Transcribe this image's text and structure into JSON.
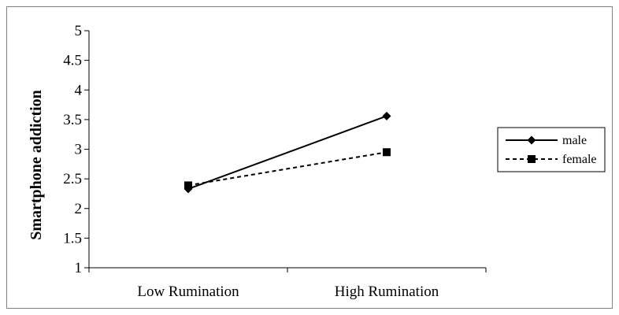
{
  "chart_data": {
    "type": "line",
    "categories": [
      "Low Rumination",
      "High Rumination"
    ],
    "ylabel": "Smartphone addiction",
    "xlabel": "",
    "ylim": [
      1,
      5
    ],
    "yticks": [
      "1",
      "1.5",
      "2",
      "2.5",
      "3",
      "3.5",
      "4",
      "4.5",
      "5"
    ],
    "grid": false,
    "legend_position": "right",
    "series": [
      {
        "name": "male",
        "values": [
          2.33,
          3.56
        ],
        "marker": "diamond",
        "line_style": "solid",
        "color": "#000000"
      },
      {
        "name": "female",
        "values": [
          2.39,
          2.95
        ],
        "marker": "square",
        "line_style": "dashed",
        "color": "#000000"
      }
    ]
  }
}
